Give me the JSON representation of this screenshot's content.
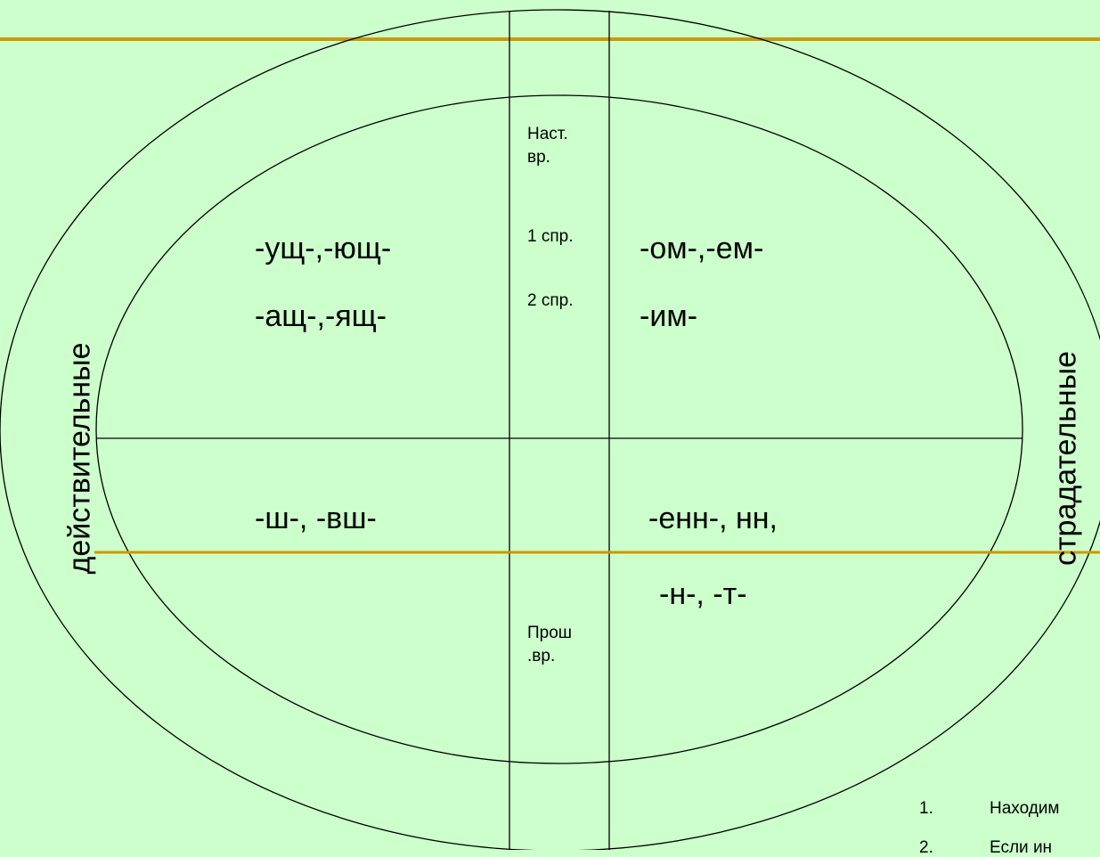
{
  "colors": {
    "background": "#ccffcc",
    "accent_line": "#cc9900",
    "stroke": "#000000"
  },
  "side_labels": {
    "left": "действительные",
    "right": "страдательные"
  },
  "center_labels": {
    "present_tense": [
      "Наст.",
      "вр."
    ],
    "conj_1": "1 спр.",
    "conj_2": "2 спр.",
    "past_tense": [
      "Прош",
      ".вр."
    ]
  },
  "suffixes": {
    "active_present_1": "-ущ-,-ющ-",
    "active_present_2": "-ащ-,-ящ-",
    "passive_present_1": "-ом-,-ем-",
    "passive_present_2": "-им-",
    "active_past": "-ш-, -вш-",
    "passive_past_1": "-енн-, нн,",
    "passive_past_2": "-н-, -т-"
  },
  "list": [
    {
      "num": "1.",
      "text": "Находим"
    },
    {
      "num": "2.",
      "text": "Если ин"
    }
  ]
}
